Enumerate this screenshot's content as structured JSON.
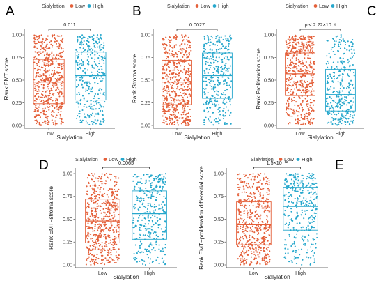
{
  "colors": {
    "low": "#e4603a",
    "high": "#26a7cc",
    "axis": "#444444",
    "annot": "#222222"
  },
  "chart_data": [
    {
      "type": "box",
      "panel_label": "A",
      "legend_title": "Sialylation",
      "legend_entries": [
        "Low",
        "High"
      ],
      "categories": [
        "Low",
        "High"
      ],
      "xlabel": "Sialylation",
      "ylabel": "Rank EMT score",
      "ylim": [
        0,
        1
      ],
      "yticks": [
        "0.00",
        "0.25",
        "0.50",
        "0.75",
        "1.00"
      ],
      "annotation": "0.011",
      "series": [
        {
          "name": "Low",
          "q1": 0.24,
          "median": 0.48,
          "q3": 0.73,
          "n": 520
        },
        {
          "name": "High",
          "q1": 0.28,
          "median": 0.55,
          "q3": 0.81,
          "n": 330
        }
      ]
    },
    {
      "type": "box",
      "panel_label": "B",
      "legend_title": "Sialylation",
      "legend_entries": [
        "Low",
        "High"
      ],
      "categories": [
        "Low",
        "High"
      ],
      "xlabel": "Sialylation",
      "ylabel": "Rank Stroma score",
      "ylim": [
        0,
        1
      ],
      "yticks": [
        "0.00",
        "0.25",
        "0.50",
        "0.75",
        "1.00"
      ],
      "annotation": "0.0027",
      "series": [
        {
          "name": "Low",
          "q1": 0.23,
          "median": 0.48,
          "q3": 0.72,
          "n": 520
        },
        {
          "name": "High",
          "q1": 0.3,
          "median": 0.55,
          "q3": 0.8,
          "n": 330
        }
      ]
    },
    {
      "type": "box",
      "panel_label": "C",
      "legend_title": "Sialylation",
      "legend_entries": [
        "Low",
        "High"
      ],
      "categories": [
        "Low",
        "High"
      ],
      "xlabel": "Sialylation",
      "ylabel": "Rank Proliferation score",
      "ylim": [
        0,
        1
      ],
      "yticks": [
        "0.00",
        "0.25",
        "0.50",
        "0.75",
        "1.00"
      ],
      "annotation": "p < 2.22×10⁻⁶",
      "series": [
        {
          "name": "Low",
          "q1": 0.33,
          "median": 0.57,
          "q3": 0.8,
          "n": 520
        },
        {
          "name": "High",
          "q1": 0.16,
          "median": 0.34,
          "q3": 0.62,
          "n": 330
        }
      ]
    },
    {
      "type": "box",
      "panel_label": "D",
      "legend_title": "Sialylation",
      "legend_entries": [
        "Low",
        "High"
      ],
      "categories": [
        "Low",
        "High"
      ],
      "xlabel": "Sialylation",
      "ylabel": "Rank EMT−stroma score",
      "ylim": [
        0,
        1
      ],
      "yticks": [
        "0.00",
        "0.25",
        "0.50",
        "0.75",
        "1.00"
      ],
      "annotation": "0.0065",
      "series": [
        {
          "name": "Low",
          "q1": 0.24,
          "median": 0.48,
          "q3": 0.72,
          "n": 520
        },
        {
          "name": "High",
          "q1": 0.28,
          "median": 0.56,
          "q3": 0.81,
          "n": 330
        }
      ]
    },
    {
      "type": "box",
      "panel_label": "E",
      "legend_title": "Sialylation",
      "legend_entries": [
        "Low",
        "High"
      ],
      "categories": [
        "Low",
        "High"
      ],
      "xlabel": "Sialylation",
      "ylabel": "Rank EMT−proliferation differential score",
      "ylim": [
        0,
        1
      ],
      "yticks": [
        "0.00",
        "0.25",
        "0.50",
        "0.75",
        "1.00"
      ],
      "annotation": "1.5×10⁻¹²",
      "series": [
        {
          "name": "Low",
          "q1": 0.22,
          "median": 0.44,
          "q3": 0.69,
          "n": 520
        },
        {
          "name": "High",
          "q1": 0.38,
          "median": 0.64,
          "q3": 0.85,
          "n": 330
        }
      ]
    }
  ]
}
